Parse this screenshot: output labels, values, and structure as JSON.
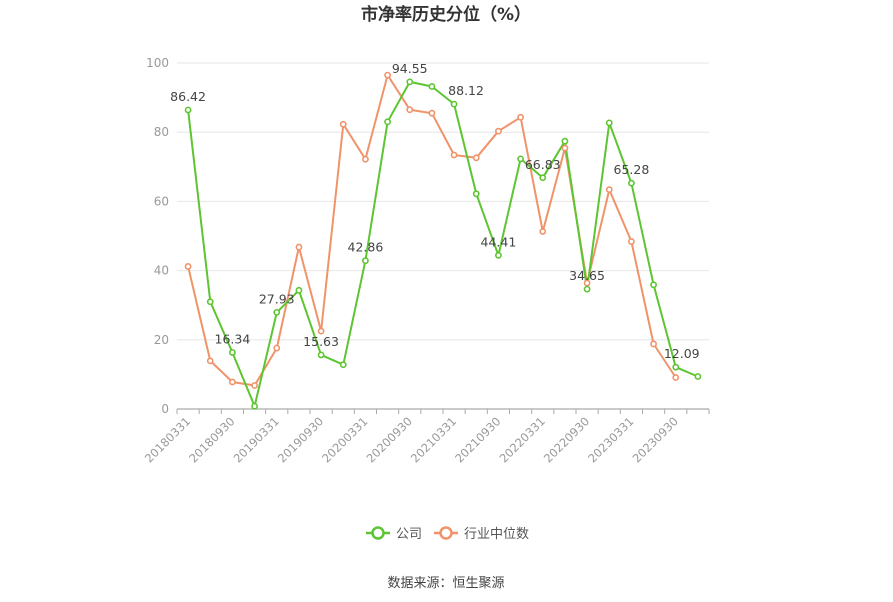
{
  "title": "市净率历史分位（%）",
  "source": "数据来源：恒生聚源",
  "colors": {
    "company": "#5cc531",
    "industry": "#f0936a",
    "axis": "#999999",
    "grid": "#e6e6e6"
  },
  "chart_data": {
    "type": "line",
    "title": "市净率历史分位（%）",
    "ylim": [
      0,
      100
    ],
    "yticks": [
      0,
      20,
      40,
      60,
      80,
      100
    ],
    "grid": true,
    "legend_position": "bottom-center",
    "x": [
      "20180331",
      "20180630",
      "20180930",
      "20181231",
      "20190331",
      "20190630",
      "20190930",
      "20191231",
      "20200331",
      "20200630",
      "20200930",
      "20201231",
      "20210331",
      "20210630",
      "20210930",
      "20211231",
      "20220331",
      "20220630",
      "20220930",
      "20221231",
      "20230331",
      "20230630",
      "20230930",
      "20231231"
    ],
    "xtick_labels": [
      "20180331",
      "20180930",
      "20190331",
      "20190930",
      "20200331",
      "20200930",
      "20210331",
      "20210930",
      "20220331",
      "20220930",
      "20230331",
      "20230930"
    ],
    "series": [
      {
        "name": "公司",
        "values": [
          86.42,
          31.0,
          16.34,
          0.8,
          27.93,
          34.3,
          15.63,
          12.8,
          42.86,
          83.0,
          94.55,
          93.2,
          88.12,
          62.2,
          44.41,
          72.3,
          66.83,
          77.4,
          34.65,
          82.7,
          65.28,
          35.9,
          12.09,
          9.4
        ],
        "labels": {
          "0": "86.42",
          "2": "16.34",
          "4": "27.93",
          "6": "15.63",
          "8": "42.86",
          "10": "94.55",
          "12": "88.12",
          "14": "44.41",
          "16": "66.83",
          "18": "34.65",
          "20": "65.28",
          "22": "12.09"
        }
      },
      {
        "name": "行业中位数",
        "values": [
          41.2,
          13.9,
          7.8,
          6.8,
          17.6,
          46.8,
          22.5,
          82.3,
          72.2,
          96.5,
          86.5,
          85.5,
          73.4,
          72.6,
          80.3,
          84.3,
          51.3,
          75.4,
          36.4,
          63.4,
          48.4,
          18.8,
          9.1,
          null
        ]
      }
    ]
  }
}
